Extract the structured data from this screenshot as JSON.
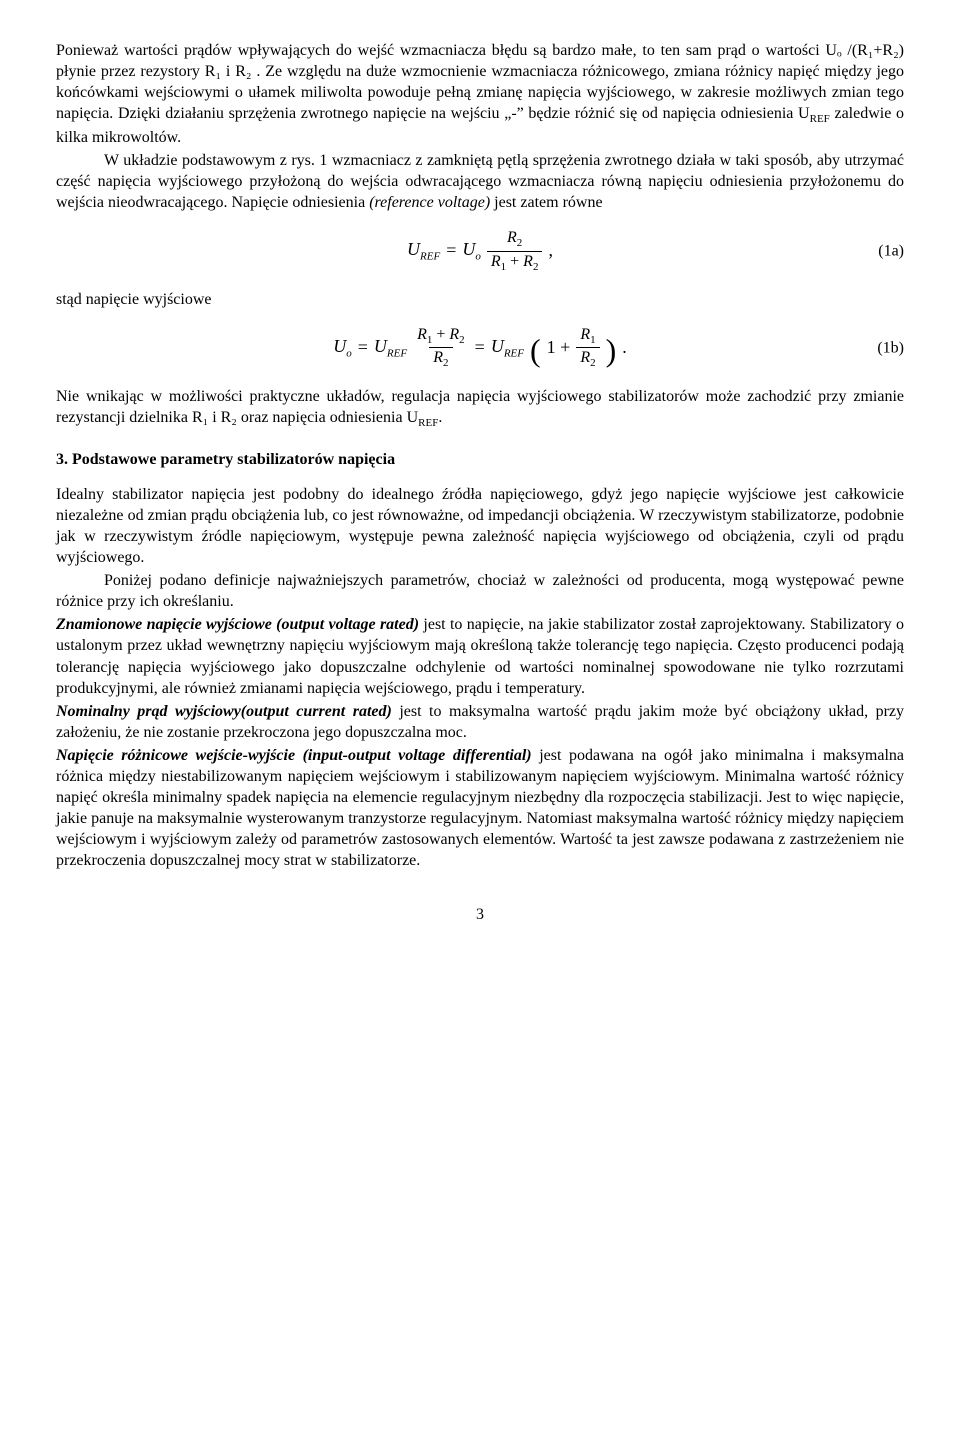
{
  "para1": "Ponieważ wartości  prądów  wpływających do wejść wzmacniacza błędu są bardzo małe, to ten sam prąd o wartości Uₒ /(R₁+R₂) płynie przez rezystory R₁ i R₂ . Ze względu  na duże wzmocnienie wzmacniacza różnicowego, zmiana różnicy napięć między jego końcówkami wejściowymi o ułamek miliwolta powoduje pełną zmianę napięcia wyjściowego, w zakresie możliwych  zmian tego napięcia. Dzięki działaniu sprzężenia zwrotnego napięcie na wejściu „-” będzie różnić się od napięcia odniesienia U",
  "para1_ref": "REF",
  "para1_tail": " zaledwie o kilka mikrowoltów.",
  "para2": "W układzie podstawowym z rys. 1  wzmacniacz z zamkniętą pętlą sprzężenia zwrotnego działa w taki sposób, aby utrzymać część napięcia wyjściowego przyłożoną do wejścia odwracającego wzmacniacza równą  napięciu odniesienia przyłożonemu do wejścia nieodwracającego. Napięcie odniesienia ",
  "para2_ital": "(reference voltage)",
  "para2_tail": " jest zatem równe",
  "eq1a": {
    "U": "U",
    "REF": "REF",
    "eq": " = ",
    "Uo": "U",
    "o": "o",
    "R2": "R",
    "two": "2",
    "R1": "R",
    "one": "1",
    "plus": " + ",
    "comma": ",",
    "label": "(1a)"
  },
  "between": "stąd napięcie wyjściowe",
  "eq1b": {
    "Uo": "U",
    "o": "o",
    "eq": " = ",
    "UREF": "U",
    "REF": "REF",
    "R1": "R",
    "one": "1",
    "plus": " + ",
    "R2": "R",
    "two": "2",
    "eq2": " = ",
    "onep": "1 +",
    "dot": ".",
    "label": "(1b)"
  },
  "para3": "Nie wnikając w możliwości praktyczne układów, regulacja napięcia wyjściowego stabilizatorów może zachodzić przy zmianie rezystancji dzielnika R₁ i R₂ oraz  napięcia odniesienia U",
  "para3_ref": "REF",
  "para3_tail": ".",
  "section3": "3. Podstawowe parametry stabilizatorów napięcia",
  "para4": "Idealny stabilizator napięcia jest podobny do idealnego źródła napięciowego, gdyż jego napięcie wyjściowe jest całkowicie niezależne od zmian prądu obciążenia lub, co jest równoważne, od impedancji obciążenia. W rzeczywistym stabilizatorze, podobnie jak w rzeczywistym źródle napięciowym, występuje pewna zależność napięcia wyjściowego od obciążenia, czyli od prądu wyjściowego.",
  "para5": "Poniżej podano definicje najważniejszych parametrów, chociaż w zależności od producenta, mogą występować pewne różnice przy ich określaniu.",
  "para6_b": "Znamionowe napięcie wyjściowe (output voltage rated)",
  "para6": "  jest to napięcie, na jakie stabilizator został zaprojektowany. Stabilizatory o ustalonym  przez układ wewnętrzny napięciu wyjściowym mają określoną  także  tolerancję tego napięcia. Często producenci podają tolerancję napięcia wyjściowego jako dopuszczalne odchylenie od wartości nominalnej spowodowane nie tylko rozrzutami produkcyjnymi, ale również  zmianami napięcia wejściowego, prądu i temperatury.",
  "para7_b": "Nominalny prąd wyjściowy(output current rated)",
  "para7": " jest to maksymalna wartość prądu jakim może być obciążony układ, przy  założeniu, że nie zostanie przekroczona jego dopuszczalna moc.",
  "para8_b": "Napięcie różnicowe wejście-wyjście (input-output voltage differential)",
  "para8": " jest podawana na ogół jako minimalna i maksymalna różnica między niestabilizowanym napięciem wejściowym i stabilizowanym napięciem wyjściowym.  Minimalna wartość różnicy napięć określa minimalny spadek napięcia na elemencie regulacyjnym niezbędny dla  rozpoczęcia stabilizacji. Jest to więc napięcie, jakie panuje na maksymalnie wysterowanym tranzystorze regulacyjnym. Natomiast maksymalna wartość różnicy między napięciem wejściowym i wyjściowym  zależy od parametrów zastosowanych elementów. Wartość ta jest zawsze podawana z zastrzeżeniem nie przekroczenia dopuszczalnej mocy strat w stabilizatorze.",
  "pagenum": "3"
}
